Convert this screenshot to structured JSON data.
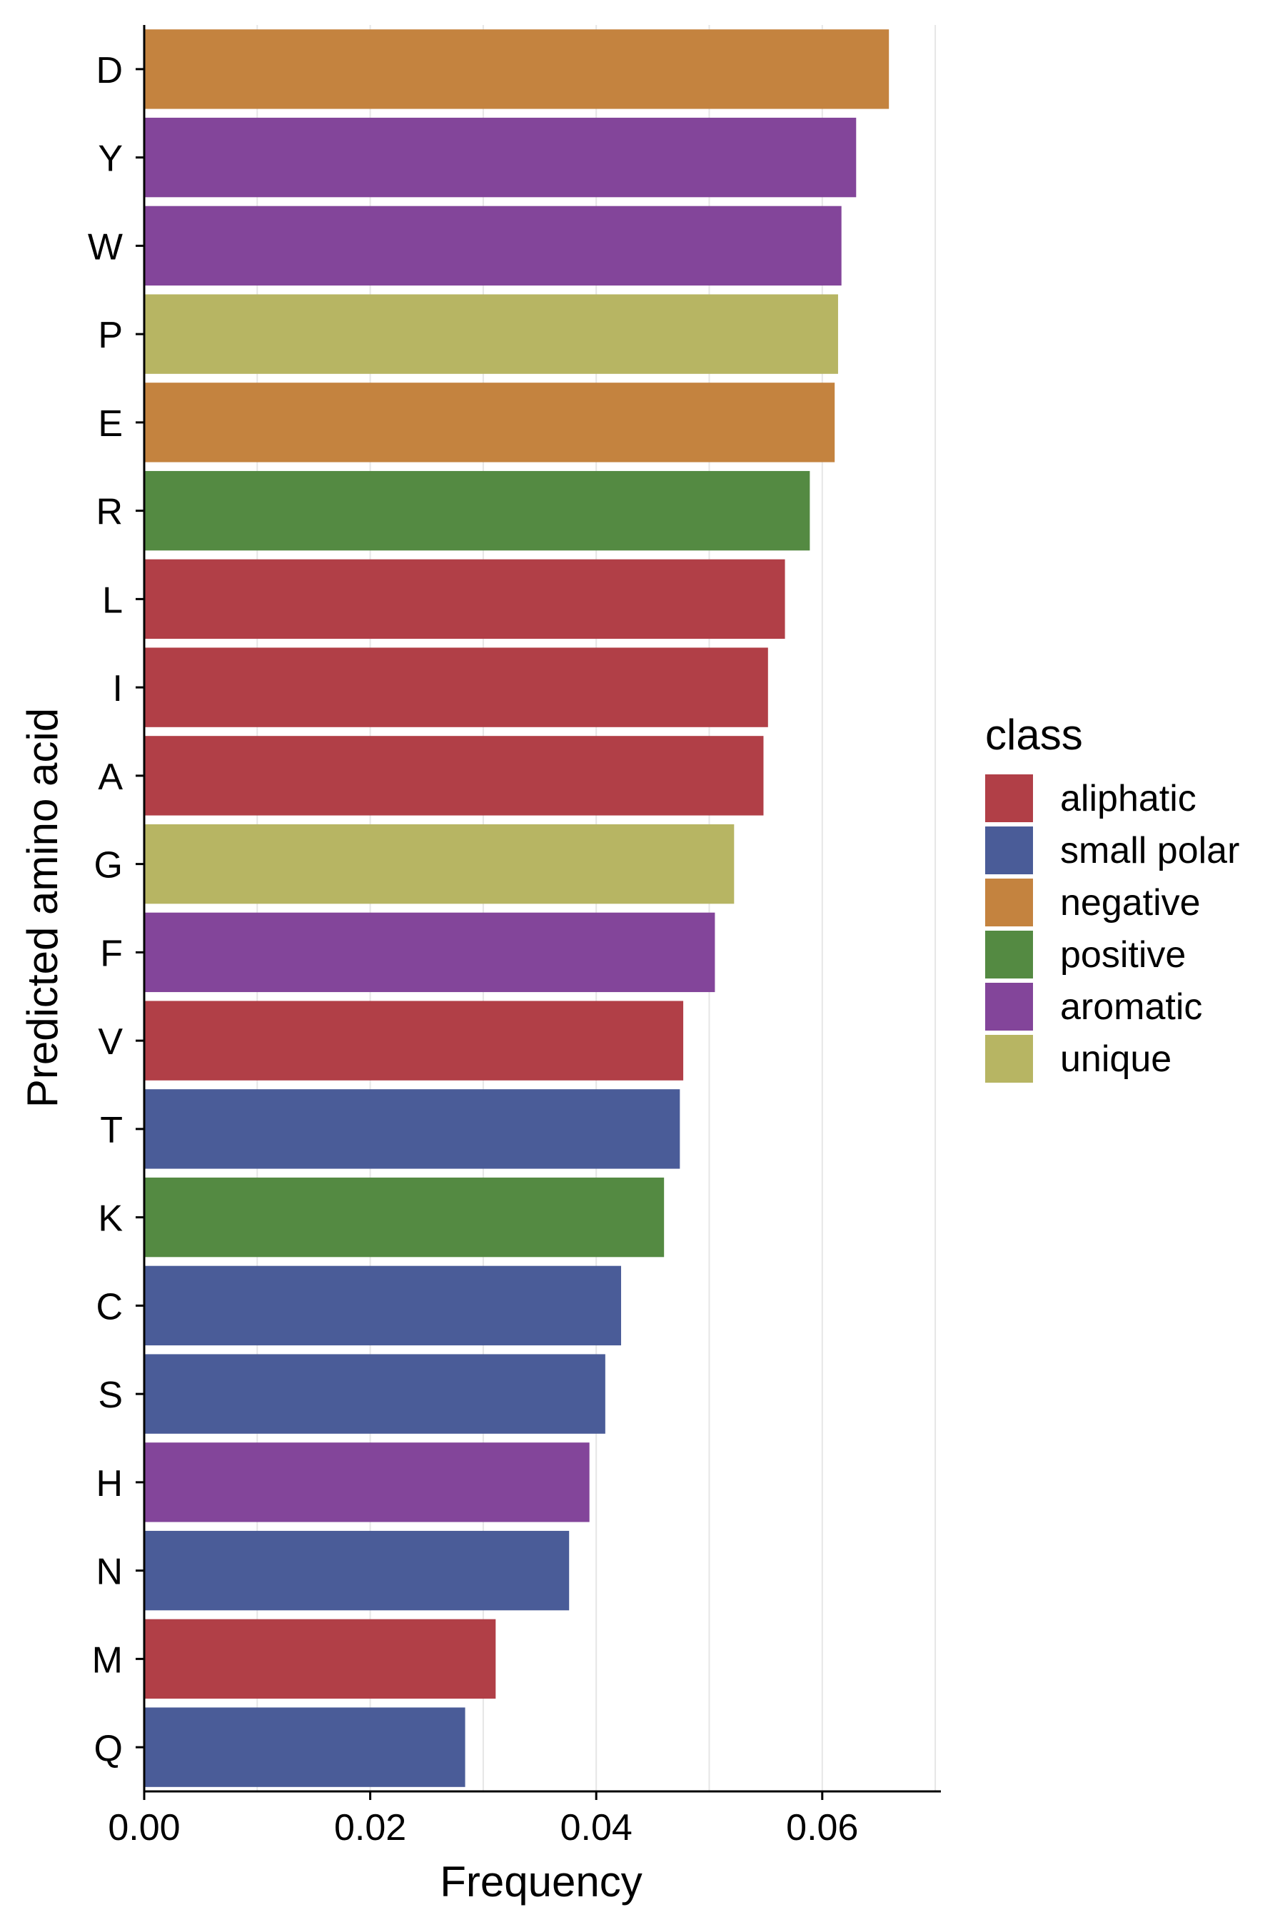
{
  "chart_data": {
    "type": "bar",
    "orientation": "horizontal",
    "xlabel": "Frequency",
    "ylabel": "Predicted amino acid",
    "xlim": [
      0,
      0.0705
    ],
    "xticks": [
      0.0,
      0.02,
      0.04,
      0.06
    ],
    "xtick_labels": [
      "0.00",
      "0.02",
      "0.04",
      "0.06"
    ],
    "grid": "vertical",
    "legend_title": "class",
    "legend_position": "right",
    "classes": [
      {
        "name": "aliphatic",
        "color": "#b13f47"
      },
      {
        "name": "small polar",
        "color": "#4a5c98"
      },
      {
        "name": "negative",
        "color": "#c4833f"
      },
      {
        "name": "positive",
        "color": "#548a42"
      },
      {
        "name": "aromatic",
        "color": "#83459a"
      },
      {
        "name": "unique",
        "color": "#b7b563"
      }
    ],
    "bars": [
      {
        "label": "D",
        "value": 0.0659,
        "class": "negative"
      },
      {
        "label": "Y",
        "value": 0.063,
        "class": "aromatic"
      },
      {
        "label": "W",
        "value": 0.0617,
        "class": "aromatic"
      },
      {
        "label": "P",
        "value": 0.0614,
        "class": "unique"
      },
      {
        "label": "E",
        "value": 0.0611,
        "class": "negative"
      },
      {
        "label": "R",
        "value": 0.0589,
        "class": "positive"
      },
      {
        "label": "L",
        "value": 0.0567,
        "class": "aliphatic"
      },
      {
        "label": "I",
        "value": 0.0552,
        "class": "aliphatic"
      },
      {
        "label": "A",
        "value": 0.0548,
        "class": "aliphatic"
      },
      {
        "label": "G",
        "value": 0.0522,
        "class": "unique"
      },
      {
        "label": "F",
        "value": 0.0505,
        "class": "aromatic"
      },
      {
        "label": "V",
        "value": 0.0477,
        "class": "aliphatic"
      },
      {
        "label": "T",
        "value": 0.0474,
        "class": "small polar"
      },
      {
        "label": "K",
        "value": 0.046,
        "class": "positive"
      },
      {
        "label": "C",
        "value": 0.0422,
        "class": "small polar"
      },
      {
        "label": "S",
        "value": 0.0408,
        "class": "small polar"
      },
      {
        "label": "H",
        "value": 0.0394,
        "class": "aromatic"
      },
      {
        "label": "N",
        "value": 0.0376,
        "class": "small polar"
      },
      {
        "label": "M",
        "value": 0.0311,
        "class": "aliphatic"
      },
      {
        "label": "Q",
        "value": 0.0284,
        "class": "small polar"
      }
    ]
  }
}
